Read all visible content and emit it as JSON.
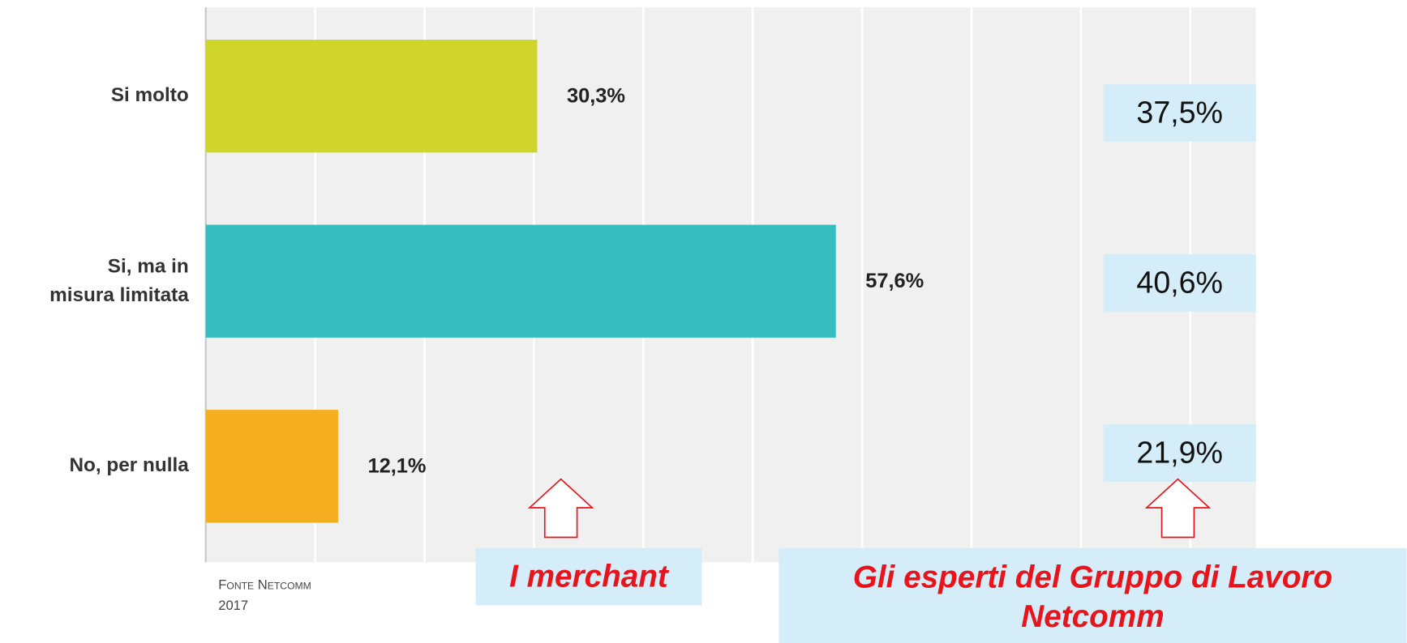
{
  "chart_data": {
    "type": "bar",
    "orientation": "horizontal",
    "categories": [
      "Si molto",
      "Si, ma in misura limitata",
      "No, per nulla"
    ],
    "values": [
      30.3,
      57.6,
      12.1
    ],
    "value_labels": [
      "30,3%",
      "57,6%",
      "12,1%"
    ],
    "colors": [
      "#cfd52a",
      "#35bdbf",
      "#f5ae1f"
    ],
    "expert_values": [
      37.5,
      40.6,
      21.9
    ],
    "expert_value_labels": [
      "37,5%",
      "40,6%",
      "21,9%"
    ],
    "xlim": [
      0,
      96
    ],
    "xticks": [
      0,
      10,
      20,
      30,
      40,
      50,
      60,
      70,
      80,
      90
    ],
    "grid": true,
    "annotations": [
      "I merchant",
      "Gli esperti del Gruppo di Lavoro Netcomm"
    ],
    "source": "Fonte Netcomm 2017"
  }
}
